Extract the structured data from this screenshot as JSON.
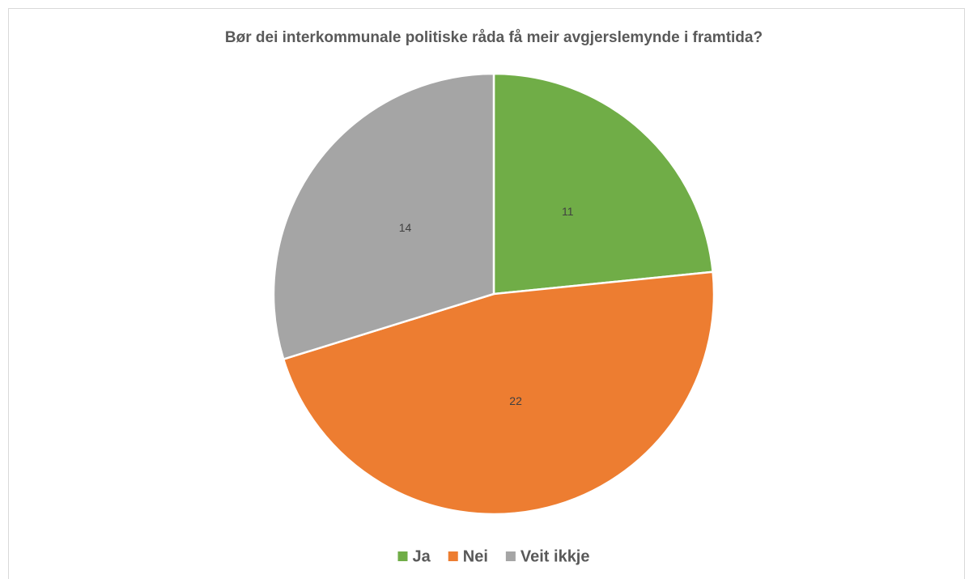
{
  "chart_data": {
    "type": "pie",
    "title": "Bør dei interkommunale politiske råda få meir avgjerslemynde i framtida?",
    "categories": [
      "Ja",
      "Nei",
      "Veit ikkje"
    ],
    "values": [
      11,
      22,
      14
    ],
    "colors": [
      "#70ad47",
      "#ed7d31",
      "#a5a5a5"
    ],
    "legend": "bottom"
  }
}
